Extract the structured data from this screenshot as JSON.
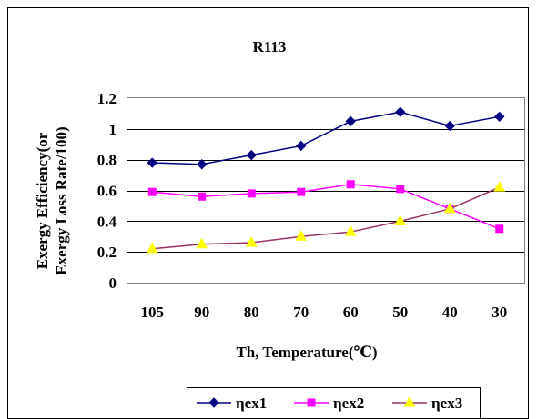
{
  "chart_data": {
    "type": "line",
    "title": "R113",
    "xlabel": "Th, Temperature(℃)",
    "ylabel_lines": [
      "Exergy Efficiency(or",
      "Exergy Loss Rate/100)"
    ],
    "categories": [
      "105",
      "90",
      "80",
      "70",
      "60",
      "50",
      "40",
      "30"
    ],
    "ylim": [
      0,
      1.2
    ],
    "yticks": [
      0,
      0.2,
      0.4,
      0.6,
      0.8,
      1,
      1.2
    ],
    "ytick_labels": [
      "0",
      "0.2",
      "0.4",
      "0.6",
      "0.8",
      "1",
      "1.2"
    ],
    "grid": "horizontal",
    "legend_position": "bottom",
    "series": [
      {
        "name": "ηex1",
        "color": "#000080",
        "marker_color": "#000080",
        "marker": "diamond",
        "values": [
          0.78,
          0.77,
          0.83,
          0.89,
          1.05,
          1.11,
          1.02,
          1.08
        ]
      },
      {
        "name": "ηex2",
        "color": "#ff00ff",
        "marker_color": "#ff00ff",
        "marker": "square",
        "values": [
          0.59,
          0.56,
          0.58,
          0.59,
          0.64,
          0.61,
          0.48,
          0.35
        ]
      },
      {
        "name": "ηex3",
        "color": "#993366",
        "marker_color": "#ffff00",
        "marker": "triangle",
        "values": [
          0.22,
          0.25,
          0.26,
          0.3,
          0.33,
          0.4,
          0.48,
          0.62
        ]
      }
    ]
  }
}
